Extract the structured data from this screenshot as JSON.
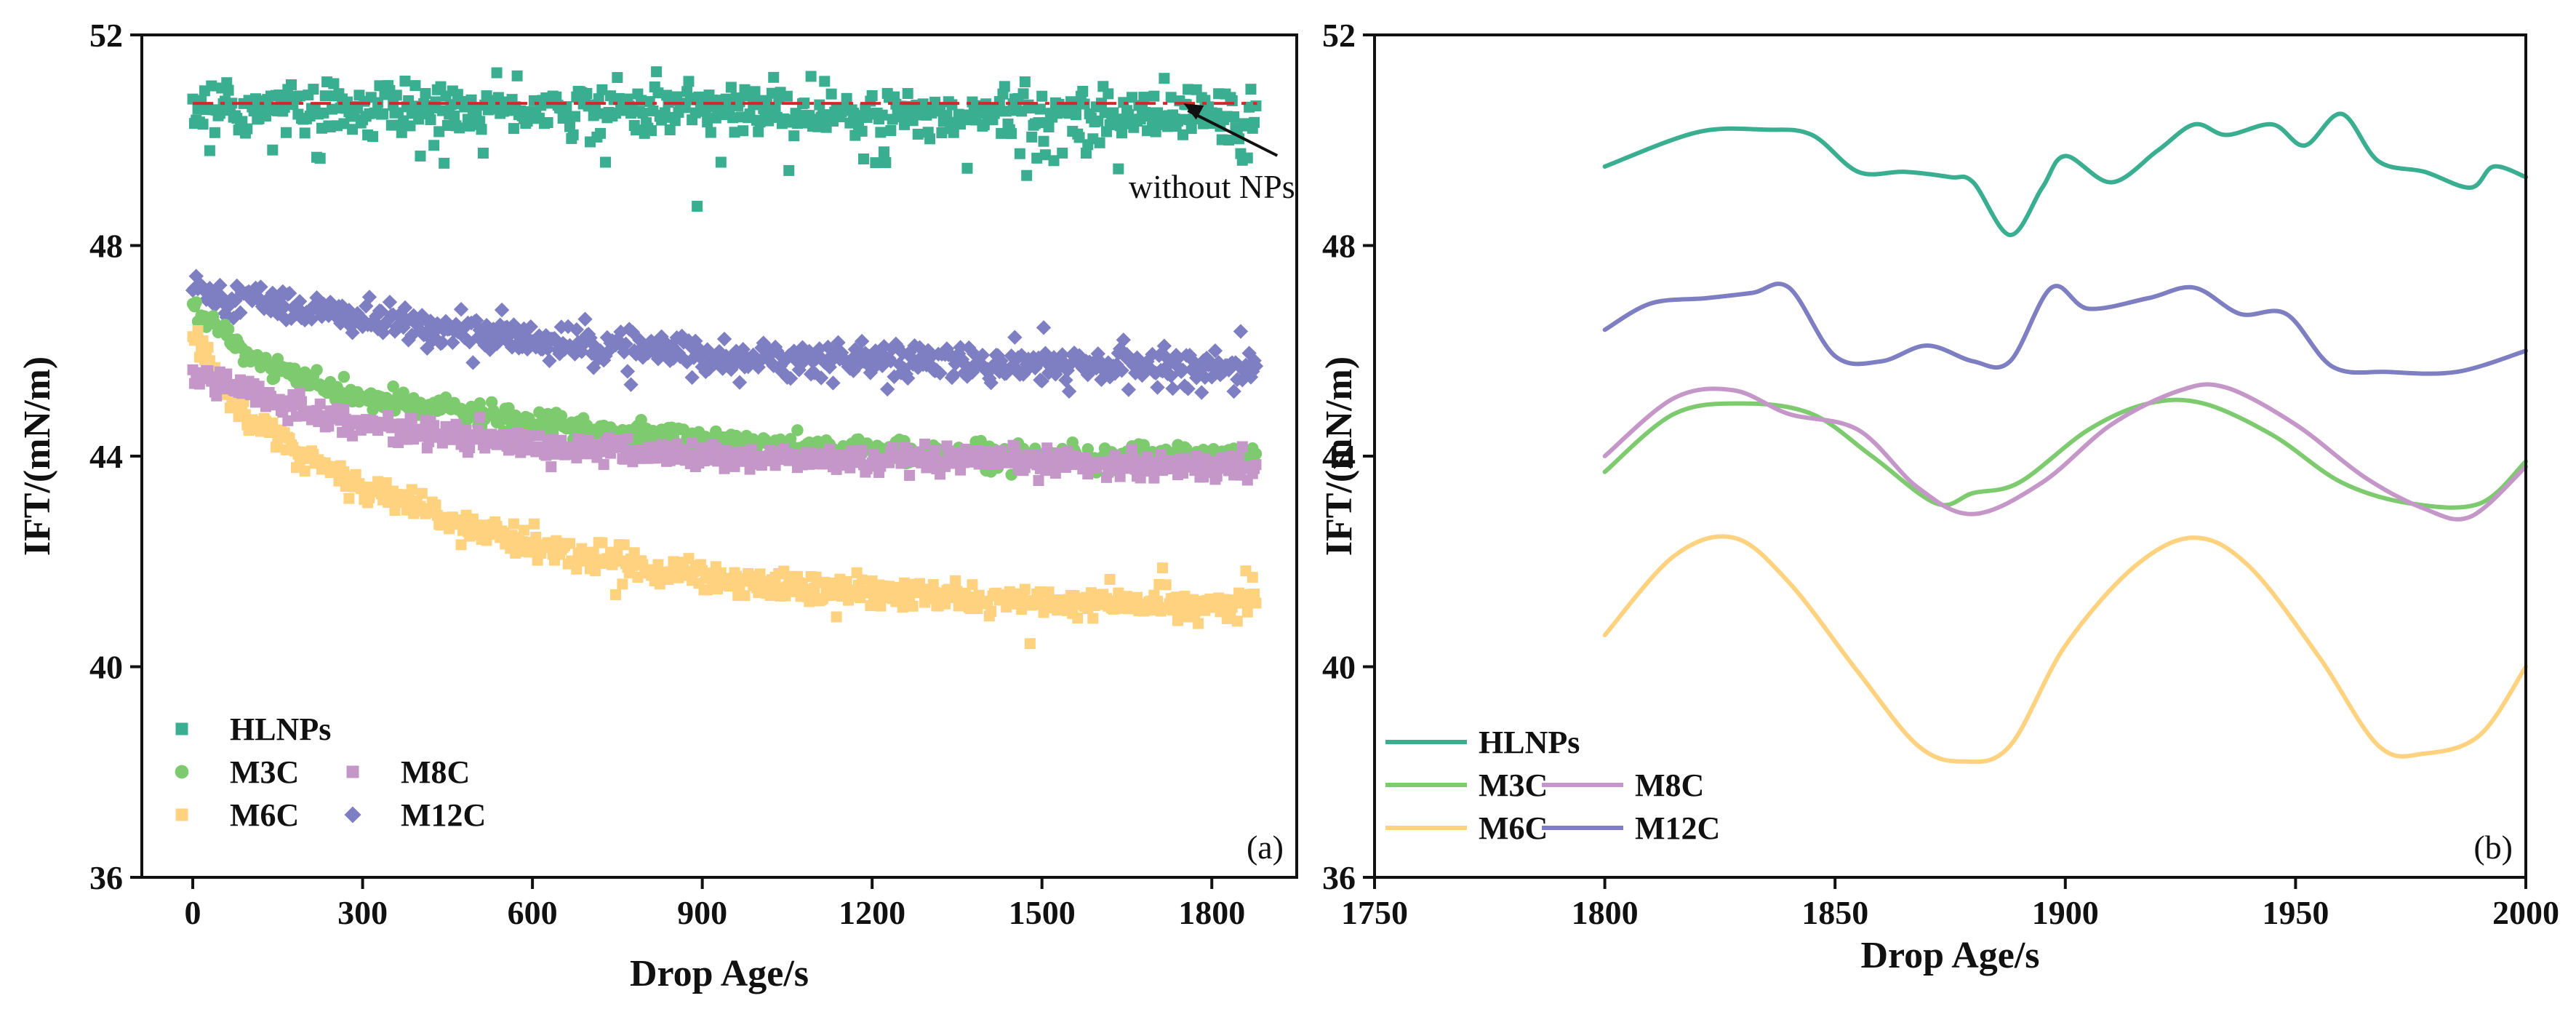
{
  "chart_data": [
    {
      "id": "a",
      "type": "scatter",
      "panel_label": "(a)",
      "xlabel": "Drop Age/s",
      "ylabel": "IFT/(mN/m)",
      "xlim": [
        -90,
        1950
      ],
      "ylim": [
        36,
        52
      ],
      "xticks": [
        0,
        300,
        600,
        900,
        1200,
        1500,
        1800
      ],
      "yticks": [
        36,
        40,
        44,
        48,
        52
      ],
      "legend_position": "bottom-left",
      "reference_line": {
        "label": "without NPs",
        "y": 50.7,
        "x_range": [
          0,
          1880
        ],
        "color": "#D62728"
      },
      "annotation": {
        "text": "without NPs",
        "arrow_tip": [
          1750,
          50.7
        ],
        "text_anchor": [
          1800,
          49.1
        ]
      },
      "series": [
        {
          "name": "HLNPs",
          "marker": "square",
          "color": "#3AAE90",
          "x": [
            0,
            300,
            600,
            900,
            1200,
            1500,
            1800,
            1880
          ],
          "y": [
            50.6,
            50.6,
            50.6,
            50.6,
            50.5,
            50.5,
            50.5,
            50.5
          ],
          "scatter": 0.45
        },
        {
          "name": "M3C",
          "marker": "circle",
          "color": "#7DCB6E",
          "x": [
            0,
            100,
            200,
            300,
            450,
            600,
            900,
            1200,
            1500,
            1800,
            1880
          ],
          "y": [
            46.8,
            45.9,
            45.4,
            45.1,
            44.9,
            44.6,
            44.3,
            44.1,
            44.0,
            44.0,
            44.0
          ],
          "scatter": 0.2
        },
        {
          "name": "M8C",
          "marker": "square",
          "color": "#C597C9",
          "x": [
            0,
            100,
            200,
            300,
            450,
            600,
            900,
            1200,
            1500,
            1800,
            1880
          ],
          "y": [
            45.6,
            45.2,
            44.9,
            44.6,
            44.4,
            44.2,
            44.0,
            43.9,
            43.9,
            43.8,
            43.8
          ],
          "scatter": 0.22
        },
        {
          "name": "M6C",
          "marker": "square",
          "color": "#FFD27F",
          "x": [
            0,
            50,
            100,
            200,
            300,
            450,
            600,
            900,
            1200,
            1500,
            1800,
            1880
          ],
          "y": [
            46.3,
            45.3,
            44.7,
            44.0,
            43.4,
            42.8,
            42.3,
            41.7,
            41.4,
            41.2,
            41.2,
            41.2
          ],
          "scatter": 0.25
        },
        {
          "name": "M12C",
          "marker": "diamond",
          "color": "#7E7EC2",
          "x": [
            0,
            100,
            200,
            300,
            450,
            600,
            900,
            1200,
            1500,
            1800,
            1880
          ],
          "y": [
            47.2,
            47.0,
            46.8,
            46.6,
            46.4,
            46.2,
            45.9,
            45.8,
            45.7,
            45.7,
            45.7
          ],
          "scatter": 0.3
        }
      ],
      "legend": [
        {
          "name": "HLNPs",
          "marker": "square",
          "color": "#3AAE90"
        },
        {
          "name": "M3C",
          "marker": "circle",
          "color": "#7DCB6E"
        },
        {
          "name": "M8C",
          "marker": "square",
          "color": "#C597C9"
        },
        {
          "name": "M6C",
          "marker": "square",
          "color": "#FFD27F"
        },
        {
          "name": "M12C",
          "marker": "diamond",
          "color": "#7E7EC2"
        }
      ]
    },
    {
      "id": "b",
      "type": "line",
      "panel_label": "(b)",
      "xlabel": "Drop Age/s",
      "ylabel": "IFT/(mN/m)",
      "xlim": [
        1750,
        2000
      ],
      "ylim": [
        36,
        52
      ],
      "xticks": [
        1750,
        1800,
        1850,
        1900,
        1950,
        2000
      ],
      "yticks": [
        36,
        40,
        44,
        48,
        52
      ],
      "legend_position": "bottom-left",
      "series": [
        {
          "name": "HLNPs",
          "color": "#3AAE90",
          "x": [
            1800,
            1820,
            1835,
            1845,
            1855,
            1865,
            1875,
            1880,
            1888,
            1895,
            1900,
            1910,
            1920,
            1928,
            1935,
            1945,
            1952,
            1960,
            1968,
            1978,
            1988,
            1993,
            2000
          ],
          "y": [
            49.5,
            50.15,
            50.2,
            50.1,
            49.4,
            49.4,
            49.3,
            49.2,
            48.2,
            49.1,
            49.7,
            49.2,
            49.8,
            50.3,
            50.1,
            50.3,
            49.9,
            50.5,
            49.6,
            49.4,
            49.1,
            49.5,
            49.3
          ]
        },
        {
          "name": "M3C",
          "color": "#7DCB6E",
          "x": [
            1800,
            1815,
            1830,
            1845,
            1858,
            1872,
            1880,
            1890,
            1905,
            1918,
            1930,
            1945,
            1960,
            1975,
            1990,
            2000
          ],
          "y": [
            43.7,
            44.8,
            45.0,
            44.8,
            44.0,
            43.1,
            43.3,
            43.5,
            44.5,
            45.0,
            45.0,
            44.4,
            43.5,
            43.1,
            43.1,
            43.9
          ]
        },
        {
          "name": "M8C",
          "color": "#C597C9",
          "x": [
            1800,
            1815,
            1828,
            1840,
            1855,
            1868,
            1880,
            1895,
            1910,
            1925,
            1935,
            1950,
            1965,
            1978,
            1988,
            2000
          ],
          "y": [
            44.0,
            45.1,
            45.25,
            44.8,
            44.5,
            43.4,
            42.9,
            43.5,
            44.6,
            45.25,
            45.3,
            44.6,
            43.6,
            43.0,
            42.85,
            43.8
          ]
        },
        {
          "name": "M6C",
          "color": "#FFD27F",
          "x": [
            1800,
            1815,
            1828,
            1840,
            1855,
            1868,
            1878,
            1888,
            1900,
            1915,
            1928,
            1940,
            1955,
            1968,
            1978,
            1990,
            2000
          ],
          "y": [
            40.6,
            42.1,
            42.45,
            41.6,
            39.9,
            38.5,
            38.2,
            38.5,
            40.4,
            41.9,
            42.45,
            41.9,
            40.2,
            38.5,
            38.35,
            38.7,
            40.0
          ]
        },
        {
          "name": "M12C",
          "color": "#7E7EC2",
          "x": [
            1800,
            1810,
            1822,
            1832,
            1840,
            1850,
            1860,
            1870,
            1880,
            1888,
            1897,
            1905,
            1918,
            1928,
            1938,
            1948,
            1958,
            1970,
            1985,
            2000
          ],
          "y": [
            46.4,
            46.9,
            47.0,
            47.1,
            47.2,
            45.9,
            45.8,
            46.1,
            45.8,
            45.8,
            47.2,
            46.8,
            47.0,
            47.2,
            46.7,
            46.7,
            45.7,
            45.6,
            45.6,
            46.0
          ]
        }
      ],
      "legend": [
        {
          "name": "HLNPs",
          "color": "#3AAE90"
        },
        {
          "name": "M3C",
          "color": "#7DCB6E"
        },
        {
          "name": "M8C",
          "color": "#C597C9"
        },
        {
          "name": "M6C",
          "color": "#FFD27F"
        },
        {
          "name": "M12C",
          "color": "#7E7EC2"
        }
      ]
    }
  ]
}
